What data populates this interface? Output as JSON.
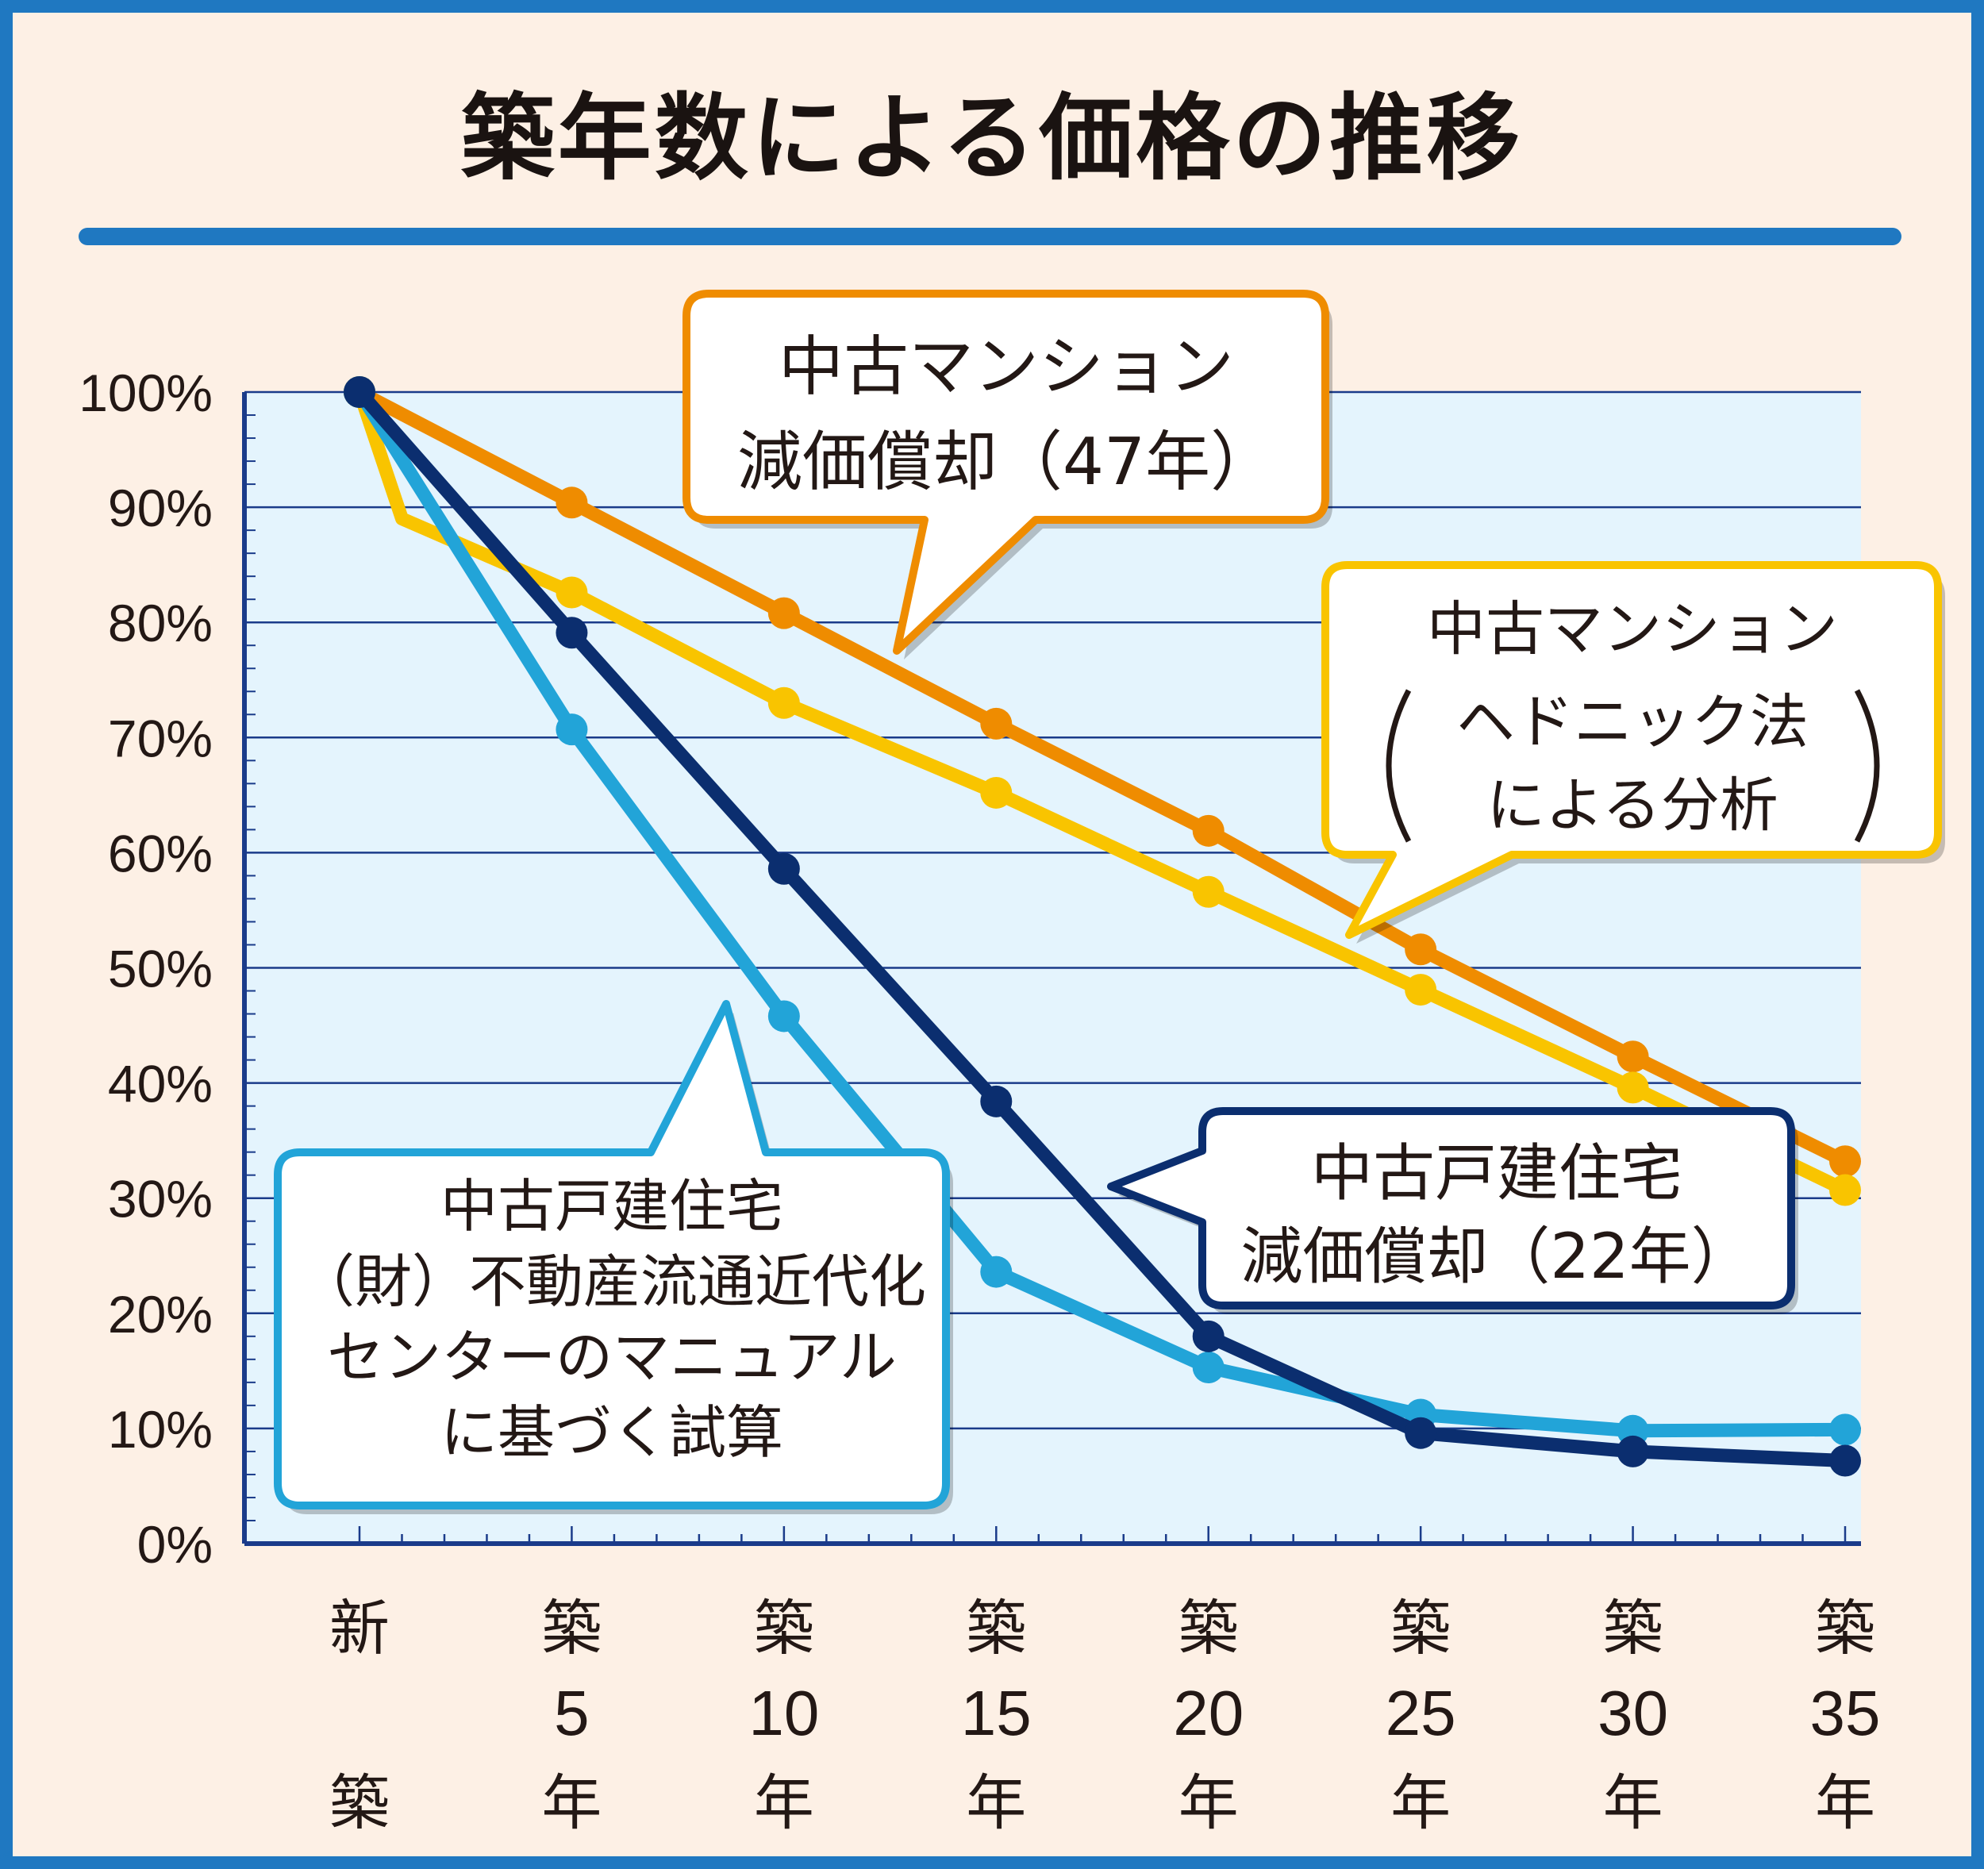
{
  "chart_data": {
    "type": "line",
    "title": "築年数による価格の推移",
    "x_ticks": [
      {
        "top": "新",
        "num": "",
        "bottom": "築"
      },
      {
        "top": "築",
        "num": "5",
        "bottom": "年"
      },
      {
        "top": "築",
        "num": "10",
        "bottom": "年"
      },
      {
        "top": "築",
        "num": "15",
        "bottom": "年"
      },
      {
        "top": "築",
        "num": "20",
        "bottom": "年"
      },
      {
        "top": "築",
        "num": "25",
        "bottom": "年"
      },
      {
        "top": "築",
        "num": "30",
        "bottom": "年"
      },
      {
        "top": "築",
        "num": "35",
        "bottom": "年"
      }
    ],
    "x": [
      0,
      5,
      10,
      15,
      20,
      25,
      30,
      35
    ],
    "ylim": [
      0,
      100
    ],
    "y_ticks": [
      "0%",
      "10%",
      "20%",
      "30%",
      "40%",
      "50%",
      "60%",
      "70%",
      "80%",
      "90%",
      "100%"
    ],
    "grid": true,
    "series": [
      {
        "key": "mansion_47",
        "color": "#ef8c00",
        "values": [
          100,
          90.4,
          80.8,
          71.2,
          61.9,
          51.6,
          42.3,
          33.2
        ],
        "callout": [
          "中古マンション",
          "減価償却（47年）"
        ]
      },
      {
        "key": "mansion_hedonic",
        "color": "#f9c400",
        "values": [
          100,
          82.6,
          73.0,
          65.2,
          56.6,
          48.1,
          39.6,
          30.7
        ],
        "extra_point": {
          "x": 1,
          "y": 89
        },
        "callout": [
          "中古マンション",
          "ヘドニック法",
          "による分析"
        ]
      },
      {
        "key": "house_22",
        "color": "#0b2e6f",
        "values": [
          100,
          79.1,
          58.6,
          38.4,
          18.0,
          9.6,
          8.0,
          7.2
        ],
        "callout": [
          "中古戸建住宅",
          "減価償却（22年）"
        ]
      },
      {
        "key": "house_manual",
        "color": "#22a4d8",
        "values": [
          100,
          70.7,
          45.8,
          23.6,
          15.3,
          11.2,
          9.8,
          9.9
        ],
        "callout": [
          "中古戸建住宅",
          "（財）不動産流通近代化",
          "センターのマニュアル",
          "に基づく試算"
        ]
      }
    ]
  },
  "colors": {
    "frame": "#1f78c1",
    "background": "#fdf0e5",
    "plot_background": "#e4f4fd",
    "axis": "#1a3b8a",
    "title_rule": "#1f78c1"
  }
}
